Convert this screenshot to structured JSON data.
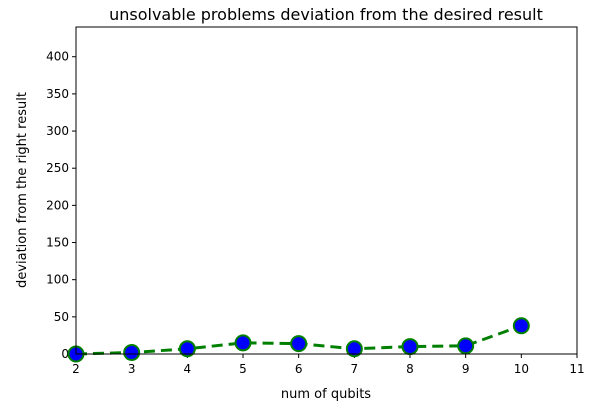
{
  "chart_data": {
    "type": "line",
    "title": "unsolvable problems deviation from the desired result",
    "xlabel": "num of qubits",
    "ylabel": "deviation from the right result",
    "x": [
      2,
      3,
      4,
      5,
      6,
      7,
      8,
      9,
      10
    ],
    "series": [
      {
        "name": "deviation",
        "values": [
          0,
          2,
          7,
          15,
          14,
          7,
          10,
          11,
          38
        ]
      }
    ],
    "xlim": [
      2,
      11
    ],
    "ylim": [
      0,
      440
    ],
    "xticks": [
      "2",
      "3",
      "4",
      "5",
      "6",
      "7",
      "8",
      "9",
      "10",
      "11"
    ],
    "yticks": [
      "0",
      "50",
      "100",
      "150",
      "200",
      "250",
      "300",
      "350",
      "400"
    ],
    "grid": false,
    "line_color": "#008000",
    "line_style": "dashed",
    "marker_color": "#0000ff",
    "marker": "circle"
  }
}
